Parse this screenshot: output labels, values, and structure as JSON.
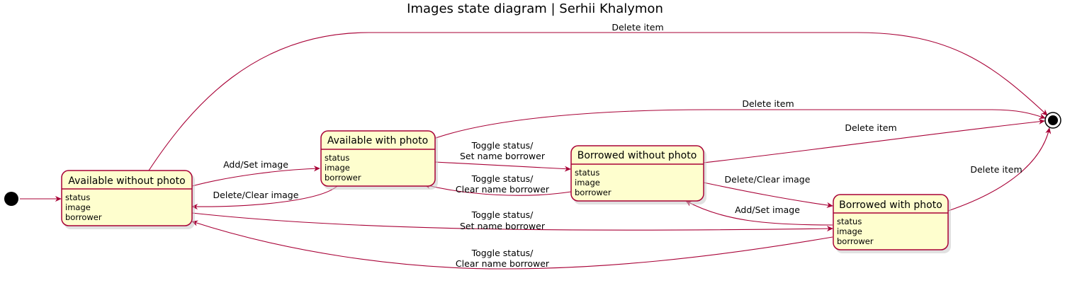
{
  "title": "Images state diagram | Serhii Khalymon",
  "colors": {
    "state_fill": "#FEFECE",
    "state_border": "#A80036",
    "arrow": "#A80036",
    "text": "#000000"
  },
  "nodes": {
    "start": {
      "label": ""
    },
    "end": {
      "label": ""
    }
  },
  "states": {
    "awp": {
      "name": "Available without photo",
      "fields": [
        "status",
        "image",
        "borrower"
      ]
    },
    "aw": {
      "name": "Available with photo",
      "fields": [
        "status",
        "image",
        "borrower"
      ]
    },
    "bwp": {
      "name": "Borrowed without photo",
      "fields": [
        "status",
        "image",
        "borrower"
      ]
    },
    "bw": {
      "name": "Borrowed with photo",
      "fields": [
        "status",
        "image",
        "borrower"
      ]
    }
  },
  "transitions": {
    "awp_end": {
      "from": "Available without photo",
      "to": "end",
      "label": [
        "Delete item"
      ]
    },
    "aw_end": {
      "from": "Available with photo",
      "to": "end",
      "label": [
        "Delete item"
      ]
    },
    "bwp_end": {
      "from": "Borrowed without photo",
      "to": "end",
      "label": [
        "Delete item"
      ]
    },
    "bw_end": {
      "from": "Borrowed with photo",
      "to": "end",
      "label": [
        "Delete item"
      ]
    },
    "awp_aw": {
      "from": "Available without photo",
      "to": "Available with photo",
      "label": [
        "Add/Set image"
      ]
    },
    "aw_awp": {
      "from": "Available with photo",
      "to": "Available without photo",
      "label": [
        "Delete/Clear image"
      ]
    },
    "aw_bwp": {
      "from": "Available with photo",
      "to": "Borrowed without photo",
      "label": [
        "Toggle status/",
        "Set name borrower"
      ]
    },
    "bwp_aw": {
      "from": "Borrowed without photo",
      "to": "Available with photo",
      "label": [
        "Toggle status/",
        "Clear name borrower"
      ]
    },
    "bwp_bw": {
      "from": "Borrowed without photo",
      "to": "Borrowed with photo",
      "label": [
        "Delete/Clear image"
      ]
    },
    "bw_bwp": {
      "from": "Borrowed with photo",
      "to": "Borrowed without photo",
      "label": [
        "Add/Set image"
      ]
    },
    "awp_bw": {
      "from": "Available without photo",
      "to": "Borrowed with photo",
      "label": [
        "Toggle status/",
        "Set name borrower"
      ]
    },
    "bw_awp": {
      "from": "Borrowed with photo",
      "to": "Available without photo",
      "label": [
        "Toggle status/",
        "Clear name borrower"
      ]
    }
  }
}
